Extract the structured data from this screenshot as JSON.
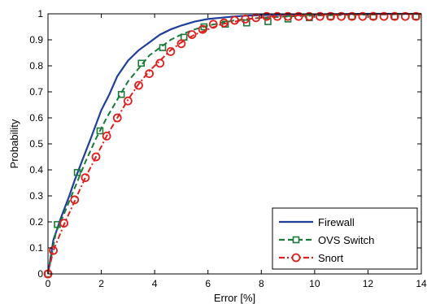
{
  "chart_data": {
    "type": "line",
    "title": "",
    "xlabel": "Error [%]",
    "ylabel": "Probability",
    "xlim": [
      0,
      14
    ],
    "ylim": [
      0,
      1
    ],
    "xticks": [
      0,
      2,
      4,
      6,
      8,
      10,
      12,
      14
    ],
    "xtick_labels": [
      "0",
      "2",
      "4",
      "6",
      "8",
      "10",
      "12",
      "14"
    ],
    "yticks": [
      0,
      0.1,
      0.2,
      0.3,
      0.4,
      0.5,
      0.6,
      0.7,
      0.8,
      0.9,
      1
    ],
    "ytick_labels": [
      "0",
      "0.1",
      "0.2",
      "0.3",
      "0.4",
      "0.5",
      "0.6",
      "0.7",
      "0.8",
      "0.9",
      "1"
    ],
    "grid": false,
    "legend_position": "bottom-right",
    "series": [
      {
        "name": "Firewall",
        "color": "#1f3f99",
        "line_style": "solid",
        "marker": "none",
        "x": [
          0,
          0.2,
          0.5,
          0.8,
          1.0,
          1.3,
          1.6,
          2.0,
          2.3,
          2.6,
          3.0,
          3.4,
          3.8,
          4.2,
          4.6,
          5.0,
          5.5,
          6.0,
          6.5,
          7.0,
          7.5,
          8.0,
          9.0,
          10.0,
          11.0,
          12.0,
          13.0,
          14.0
        ],
        "y": [
          0,
          0.13,
          0.22,
          0.3,
          0.36,
          0.44,
          0.52,
          0.63,
          0.69,
          0.76,
          0.82,
          0.86,
          0.89,
          0.92,
          0.94,
          0.955,
          0.97,
          0.98,
          0.985,
          0.99,
          0.993,
          0.995,
          0.997,
          0.998,
          0.999,
          1.0,
          1.0,
          1.0
        ]
      },
      {
        "name": "OVS Switch",
        "color": "#1a7a3a",
        "line_style": "dashed",
        "marker": "square",
        "x": [
          0,
          0.3,
          0.6,
          1.0,
          1.4,
          1.8,
          2.2,
          2.6,
          3.0,
          3.4,
          3.8,
          4.2,
          4.6,
          5.0,
          5.5,
          6.0,
          6.5,
          7.0,
          7.5,
          8.0,
          9.0,
          10.0,
          11.0,
          12.0,
          13.0,
          14.0
        ],
        "y": [
          0,
          0.16,
          0.23,
          0.33,
          0.43,
          0.52,
          0.6,
          0.67,
          0.74,
          0.79,
          0.84,
          0.87,
          0.9,
          0.92,
          0.94,
          0.955,
          0.965,
          0.975,
          0.98,
          0.985,
          0.99,
          0.993,
          0.995,
          0.997,
          0.998,
          0.999
        ],
        "marker_x": [
          0,
          0.35,
          1.1,
          1.95,
          2.75,
          3.5,
          4.3,
          5.1,
          5.85,
          6.65,
          7.45,
          8.25,
          9.0,
          9.8,
          10.6,
          11.4,
          12.2,
          13.0,
          13.8
        ],
        "marker_y": [
          0,
          0.19,
          0.39,
          0.55,
          0.69,
          0.81,
          0.87,
          0.91,
          0.95,
          0.96,
          0.965,
          0.97,
          0.98,
          0.985,
          0.99,
          0.99,
          0.99,
          0.99,
          0.99
        ]
      },
      {
        "name": "Snort",
        "color": "#e02020",
        "line_style": "dashdot",
        "marker": "circle",
        "x": [
          0,
          0.2,
          0.6,
          1.0,
          1.4,
          1.8,
          2.2,
          2.6,
          3.0,
          3.4,
          3.8,
          4.2,
          4.6,
          5.0,
          5.5,
          6.0,
          6.5,
          7.0,
          7.5,
          8.0,
          8.5,
          9.0,
          10.0,
          11.0,
          12.0,
          13.0,
          14.0
        ],
        "y": [
          0,
          0.09,
          0.19,
          0.28,
          0.37,
          0.45,
          0.53,
          0.6,
          0.67,
          0.73,
          0.78,
          0.82,
          0.86,
          0.89,
          0.92,
          0.94,
          0.96,
          0.97,
          0.98,
          0.985,
          0.99,
          0.993,
          0.995,
          0.997,
          0.998,
          0.999,
          1.0
        ],
        "marker_x": [
          0,
          0.2,
          0.6,
          1.0,
          1.4,
          1.8,
          2.2,
          2.6,
          3.0,
          3.4,
          3.8,
          4.2,
          4.6,
          5.0,
          5.4,
          5.8,
          6.2,
          6.6,
          7.0,
          7.4,
          7.8,
          8.2,
          8.6,
          9.0,
          9.4,
          9.8,
          10.2,
          10.6,
          11.0,
          11.4,
          11.8,
          12.2,
          12.6,
          13.0,
          13.4,
          13.8
        ],
        "marker_y": [
          0,
          0.09,
          0.195,
          0.285,
          0.37,
          0.45,
          0.53,
          0.6,
          0.665,
          0.725,
          0.77,
          0.81,
          0.855,
          0.885,
          0.92,
          0.94,
          0.96,
          0.965,
          0.975,
          0.98,
          0.985,
          0.99,
          0.99,
          0.99,
          0.99,
          0.99,
          0.99,
          0.99,
          0.99,
          0.99,
          0.99,
          0.99,
          0.99,
          0.99,
          0.99,
          0.99
        ]
      }
    ]
  }
}
